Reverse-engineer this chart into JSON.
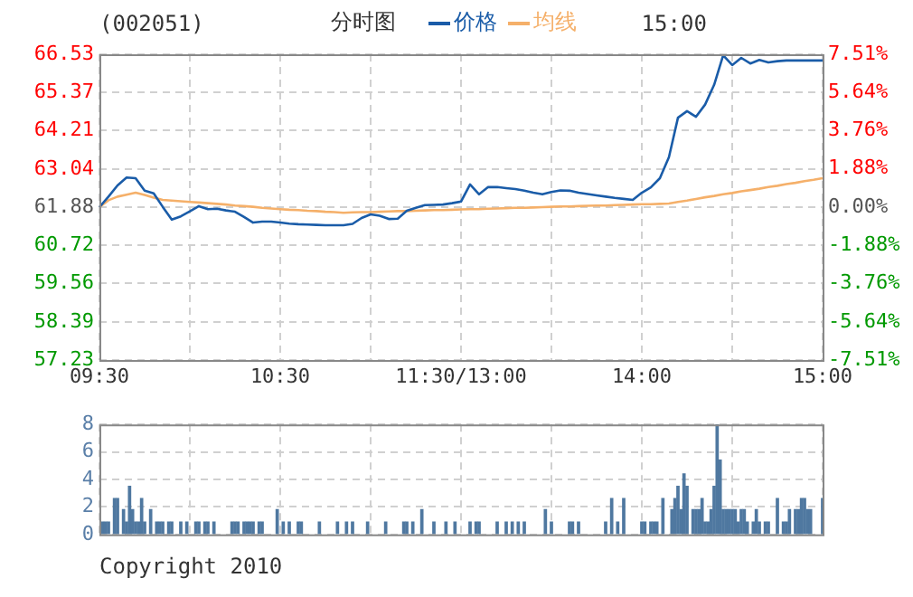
{
  "chart_data": [
    {
      "type": "line",
      "title": "(002051)",
      "subtitle": "分时图",
      "annotations": [
        "15:00"
      ],
      "legend": "top",
      "grid": true,
      "marker": "none",
      "line_style": "solid",
      "categories": [
        "09:30",
        null,
        null,
        null,
        null,
        null,
        null,
        null,
        null,
        null,
        null,
        null,
        null,
        null,
        null,
        null,
        null,
        null,
        null,
        null,
        "10:30",
        null,
        null,
        null,
        null,
        null,
        null,
        null,
        null,
        null,
        null,
        null,
        null,
        null,
        null,
        null,
        null,
        null,
        null,
        null,
        "11:30/13:00",
        null,
        null,
        null,
        null,
        null,
        null,
        null,
        null,
        null,
        null,
        null,
        null,
        null,
        null,
        null,
        null,
        null,
        null,
        null,
        "14:00",
        null,
        null,
        null,
        null,
        null,
        null,
        null,
        null,
        null,
        null,
        null,
        null,
        null,
        null,
        null,
        null,
        null,
        null,
        null,
        "15:00"
      ],
      "ylim": [
        57.23,
        66.53
      ],
      "yticks": [
        57.23,
        58.39,
        59.56,
        60.72,
        61.88,
        63.04,
        64.21,
        65.37,
        66.53
      ],
      "y2lim": [
        -7.51,
        7.51
      ],
      "y2ticks": [
        {
          "value": -7.51,
          "label": "-7.51%"
        },
        {
          "value": -5.64,
          "label": "-5.64%"
        },
        {
          "value": -3.76,
          "label": "-3.76%"
        },
        {
          "value": -1.88,
          "label": "-1.88%"
        },
        {
          "value": 0,
          "label": "0.00%"
        },
        {
          "value": 1.88,
          "label": "1.88%"
        },
        {
          "value": 3.76,
          "label": "3.76%"
        },
        {
          "value": 5.64,
          "label": "5.64%"
        },
        {
          "value": 7.51,
          "label": "7.51%"
        }
      ],
      "series": [
        {
          "name": "价格",
          "color": "#1a5ca8",
          "values": [
            61.88,
            62.2,
            62.54,
            62.78,
            62.76,
            62.38,
            62.3,
            61.89,
            61.5,
            61.6,
            61.75,
            61.91,
            61.82,
            61.83,
            61.78,
            61.74,
            61.58,
            61.41,
            61.44,
            61.44,
            61.41,
            61.38,
            61.36,
            61.35,
            61.34,
            61.33,
            61.33,
            61.33,
            61.37,
            61.55,
            61.66,
            61.62,
            61.52,
            61.53,
            61.77,
            61.86,
            61.94,
            61.95,
            61.96,
            62.0,
            62.05,
            62.57,
            62.27,
            62.49,
            62.49,
            62.46,
            62.43,
            62.38,
            62.32,
            62.27,
            62.34,
            62.39,
            62.38,
            62.32,
            62.28,
            62.24,
            62.2,
            62.16,
            62.13,
            62.1,
            62.32,
            62.48,
            62.76,
            63.4,
            64.6,
            64.8,
            64.63,
            65.0,
            65.6,
            66.5,
            66.2,
            66.42,
            66.25,
            66.36,
            66.28,
            66.32,
            66.34,
            66.34,
            66.34,
            66.34,
            66.34
          ]
        },
        {
          "name": "均线",
          "color": "#f5b06a",
          "values": [
            61.88,
            62.09,
            62.2,
            62.26,
            62.32,
            62.25,
            62.17,
            62.1,
            62.08,
            62.06,
            62.04,
            62.02,
            62.0,
            61.98,
            61.96,
            61.93,
            61.91,
            61.89,
            61.86,
            61.84,
            61.82,
            61.8,
            61.79,
            61.77,
            61.76,
            61.74,
            61.73,
            61.71,
            61.72,
            61.73,
            61.73,
            61.74,
            61.75,
            61.76,
            61.76,
            61.77,
            61.78,
            61.79,
            61.79,
            61.8,
            61.81,
            61.82,
            61.82,
            61.83,
            61.84,
            61.85,
            61.86,
            61.86,
            61.87,
            61.88,
            61.89,
            61.9,
            61.9,
            61.91,
            61.92,
            61.93,
            61.93,
            61.94,
            61.95,
            61.96,
            61.97,
            61.97,
            61.98,
            61.99,
            62.04,
            62.08,
            62.13,
            62.18,
            62.22,
            62.27,
            62.31,
            62.36,
            62.4,
            62.44,
            62.49,
            62.53,
            62.58,
            62.62,
            62.67,
            62.71,
            62.76
          ]
        }
      ]
    },
    {
      "type": "bar",
      "annotations": [
        "Copyright 2010"
      ],
      "grid": true,
      "tick_labels": "y",
      "color": "#4f78a0",
      "categories": [
        null,
        null,
        null,
        null,
        null,
        null,
        null,
        null,
        null,
        null,
        null,
        null,
        null,
        null,
        null,
        null,
        null,
        null,
        null,
        null,
        null,
        null,
        null,
        null,
        null,
        null,
        null,
        null,
        null,
        null,
        null,
        null,
        null,
        null,
        null,
        null,
        null,
        null,
        null,
        null,
        null,
        null,
        null,
        null,
        null,
        null,
        null,
        null,
        null,
        null,
        null,
        null,
        null,
        null,
        null,
        null,
        null,
        null,
        null,
        null,
        null,
        null,
        null,
        null,
        null,
        null,
        null,
        null,
        null,
        null,
        null,
        null,
        null,
        null,
        null,
        null,
        null,
        null,
        null,
        null,
        null,
        null,
        null,
        null,
        null,
        null,
        null,
        null,
        null,
        null,
        null,
        null,
        null,
        null,
        null,
        null,
        null,
        null,
        null,
        null,
        null,
        null,
        null,
        null,
        null,
        null,
        null,
        null,
        null,
        null,
        null,
        null,
        null,
        null,
        null,
        null,
        null,
        null,
        null,
        null,
        null,
        null,
        null,
        null,
        null,
        null,
        null,
        null,
        null,
        null,
        null,
        null,
        null,
        null,
        null,
        null,
        null,
        null,
        null,
        null,
        null,
        null,
        null,
        null,
        null,
        null,
        null,
        null,
        null,
        null,
        null,
        null,
        null,
        null,
        null,
        null,
        null,
        null,
        null,
        null,
        null,
        null,
        null,
        null,
        null,
        null,
        null,
        null,
        null,
        null,
        null,
        null,
        null,
        null,
        null,
        null,
        null,
        null,
        null,
        null,
        null,
        null,
        null,
        null,
        null,
        null,
        null,
        null,
        null,
        null,
        null,
        null,
        null,
        null,
        null,
        null,
        null,
        null,
        null,
        null,
        null,
        null,
        null,
        null,
        null,
        null,
        null,
        null,
        null,
        null,
        null,
        null,
        null,
        null,
        null,
        null,
        null,
        null,
        null,
        null,
        null,
        null,
        null,
        null,
        null,
        null,
        null,
        null,
        null,
        null,
        null,
        null,
        null,
        null,
        null,
        null,
        null,
        null,
        null,
        null,
        null
      ],
      "ylim": [
        0,
        8
      ],
      "yticks": [
        0,
        2,
        4,
        6,
        8
      ],
      "values": [
        null,
        0.9,
        0.9,
        0.9,
        null,
        2.6,
        2.6,
        null,
        1.8,
        0.9,
        3.5,
        1.8,
        0.9,
        0.9,
        2.6,
        0.9,
        null,
        1.8,
        null,
        0.9,
        0.9,
        0.9,
        null,
        0.9,
        0.9,
        null,
        null,
        0.9,
        null,
        0.9,
        null,
        null,
        0.9,
        0.9,
        null,
        0.9,
        0.9,
        null,
        0.9,
        null,
        null,
        null,
        null,
        null,
        0.9,
        0.9,
        0.9,
        null,
        0.9,
        0.9,
        0.9,
        0.9,
        null,
        0.9,
        0.9,
        null,
        null,
        null,
        null,
        1.8,
        null,
        0.9,
        null,
        0.9,
        null,
        null,
        0.9,
        0.9,
        null,
        null,
        null,
        null,
        null,
        0.9,
        null,
        null,
        null,
        null,
        null,
        0.9,
        null,
        null,
        0.9,
        null,
        0.9,
        null,
        null,
        null,
        null,
        0.9,
        null,
        null,
        null,
        null,
        null,
        0.9,
        null,
        null,
        null,
        null,
        null,
        0.9,
        0.9,
        null,
        0.9,
        null,
        null,
        1.8,
        null,
        null,
        null,
        0.9,
        null,
        null,
        null,
        0.9,
        null,
        null,
        0.9,
        null,
        null,
        null,
        null,
        0.9,
        null,
        0.9,
        0.9,
        null,
        null,
        null,
        null,
        null,
        0.9,
        null,
        null,
        0.9,
        null,
        0.9,
        null,
        0.9,
        null,
        0.9,
        null,
        null,
        null,
        null,
        null,
        null,
        1.8,
        null,
        0.9,
        null,
        null,
        null,
        null,
        null,
        0.9,
        0.9,
        null,
        0.9,
        null,
        null,
        null,
        null,
        null,
        null,
        null,
        null,
        0.9,
        null,
        2.6,
        null,
        0.9,
        null,
        2.6,
        null,
        null,
        null,
        null,
        null,
        0.9,
        0.9,
        null,
        0.9,
        0.9,
        0.9,
        null,
        2.6,
        null,
        null,
        1.8,
        2.6,
        3.5,
        1.8,
        4.4,
        3.5,
        null,
        1.8,
        1.8,
        1.8,
        2.6,
        0.9,
        0.9,
        1.8,
        3.5,
        8,
        5.4,
        1.8,
        1.8,
        1.8,
        1.8,
        1.8,
        0.9,
        1.8,
        1.8,
        0.9,
        null,
        0.9,
        1.8,
        0.9,
        null,
        0.9,
        0.9,
        null,
        null,
        2.6,
        null,
        0.9,
        0.9,
        1.8,
        null,
        1.8,
        1.8,
        2.6,
        2.6,
        1.8,
        1.8,
        null,
        null,
        null,
        2.6
      ]
    }
  ]
}
